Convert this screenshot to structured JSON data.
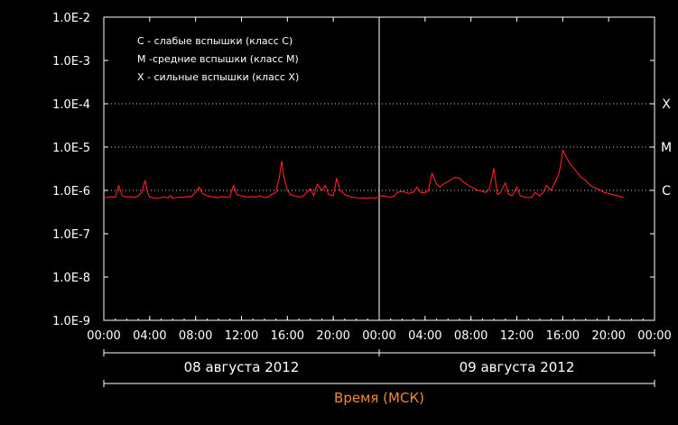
{
  "chart_data": {
    "type": "line",
    "y_scale": "log",
    "ylim": [
      "1.0E-9",
      "1.0E-2"
    ],
    "y_ticks": [
      "1.0E-2",
      "1.0E-3",
      "1.0E-4",
      "1.0E-5",
      "1.0E-6",
      "1.0E-7",
      "1.0E-8",
      "1.0E-9"
    ],
    "x_ticks": [
      "00:00",
      "04:00",
      "08:00",
      "12:00",
      "16:00",
      "20:00",
      "00:00",
      "04:00",
      "08:00",
      "12:00",
      "16:00",
      "20:00",
      "00:00"
    ],
    "xlim_hours": [
      0,
      48
    ],
    "dates": [
      "08 августа 2012",
      "09 августа 2012"
    ],
    "xlabel": "Время (МСК)",
    "legend": [
      "C - слабые вспышки (класс C)",
      "M -средние вспышки (класс M)",
      "X - сильные вспышки (класс X)"
    ],
    "legend_placement": "top-left",
    "class_levels": [
      {
        "label": "X",
        "value": "1.0E-4"
      },
      {
        "label": "M",
        "value": "1.0E-5"
      },
      {
        "label": "C",
        "value": "1.0E-6"
      }
    ],
    "series": [
      {
        "color": "#ff2020",
        "x": [
          0,
          0.3,
          0.6,
          1,
          1.3,
          1.6,
          2,
          2.3,
          2.6,
          3,
          3.3,
          3.6,
          3.8,
          4,
          4.3,
          4.6,
          5,
          5.3,
          5.6,
          5.8,
          6,
          6.3,
          6.6,
          7,
          7.3,
          7.6,
          8,
          8.3,
          8.6,
          9,
          9.3,
          9.6,
          10,
          10.3,
          10.6,
          11,
          11.3,
          11.6,
          12,
          12.3,
          12.6,
          13,
          13.3,
          13.6,
          14,
          14.3,
          14.6,
          15,
          15.3,
          15.5,
          15.7,
          16,
          16.3,
          16.6,
          17,
          17.3,
          17.6,
          18,
          18.3,
          18.6,
          19,
          19.3,
          19.6,
          20,
          20.3,
          20.6,
          21,
          21.3,
          21.6,
          22,
          22.3,
          22.6,
          23,
          23.3,
          23.6,
          24,
          24.3,
          24.6,
          25,
          25.3,
          25.6,
          26,
          26.3,
          26.6,
          27,
          27.3,
          27.6,
          28,
          28.3,
          28.6,
          29,
          29.3,
          29.6,
          30,
          30.3,
          30.6,
          31,
          31.3,
          31.6,
          32,
          32.3,
          32.6,
          33,
          33.3,
          33.6,
          34,
          34.3,
          34.6,
          35,
          35.3,
          35.6,
          36,
          36.3,
          36.6,
          37,
          37.3,
          37.6,
          38,
          38.3,
          38.6,
          39,
          39.3,
          39.6,
          39.8,
          40,
          40.3,
          40.6,
          41,
          41.3,
          41.6,
          42,
          42.3,
          42.6,
          43,
          43.3,
          43.6,
          44,
          44.3,
          44.6,
          45,
          45.3
        ],
        "y": [
          7e-07,
          6.8e-07,
          7.2e-07,
          6.9e-07,
          1.3e-06,
          7.5e-07,
          7e-07,
          7.2e-07,
          6.8e-07,
          7.4e-07,
          9e-07,
          1.7e-06,
          9e-07,
          7e-07,
          6.8e-07,
          6.5e-07,
          6.8e-07,
          7e-07,
          6.7e-07,
          7.6e-07,
          6.5e-07,
          6.8e-07,
          7e-07,
          6.9e-07,
          7.2e-07,
          7.1e-07,
          9e-07,
          1.2e-06,
          8.5e-07,
          7.5e-07,
          7.2e-07,
          7e-07,
          6.8e-07,
          7.2e-07,
          7e-07,
          7.2e-07,
          1.3e-06,
          8e-07,
          7.5e-07,
          7.2e-07,
          7e-07,
          7.2e-07,
          7e-07,
          7.5e-07,
          6.8e-07,
          7e-07,
          8e-07,
          9e-07,
          2e-06,
          4.7e-06,
          2e-06,
          1e-06,
          8e-07,
          7.5e-07,
          7e-07,
          7.2e-07,
          8.5e-07,
          1.1e-06,
          7.5e-07,
          1.4e-06,
          1e-06,
          1.3e-06,
          8e-07,
          7.5e-07,
          1.9e-06,
          1e-06,
          8e-07,
          7.5e-07,
          7e-07,
          6.8e-07,
          6.5e-07,
          6.7e-07,
          6.6e-07,
          6.8e-07,
          6.5e-07,
          7e-07,
          7.6e-07,
          7.2e-07,
          7e-07,
          7.4e-07,
          9e-07,
          9.5e-07,
          9e-07,
          8.5e-07,
          9.2e-07,
          1.2e-06,
          9e-07,
          8.8e-07,
          1e-06,
          2.5e-06,
          1.4e-06,
          1.2e-06,
          1.4e-06,
          1.6e-06,
          1.8e-06,
          2e-06,
          1.9e-06,
          1.6e-06,
          1.4e-06,
          1.2e-06,
          1.1e-06,
          1e-06,
          9.5e-07,
          9e-07,
          1.1e-06,
          3.2e-06,
          8e-07,
          9e-07,
          1.5e-06,
          8e-07,
          7.5e-07,
          1.2e-06,
          7.5e-07,
          7e-07,
          6.8e-07,
          7e-07,
          9e-07,
          7.5e-07,
          9e-07,
          1.3e-06,
          1e-06,
          1.5e-06,
          2.2e-06,
          3.5e-06,
          8.5e-06,
          6e-06,
          4.2e-06,
          3.2e-06,
          2.5e-06,
          2e-06,
          1.7e-06,
          1.4e-06,
          1.2e-06,
          1.1e-06,
          1e-06,
          9e-07,
          8.5e-07,
          8e-07,
          7.8e-07,
          7.2e-07,
          6.8e-07
        ]
      }
    ],
    "grid": "dotted horizontal at class levels",
    "marker": "vertical line at 00:00 09 августа 2012"
  }
}
